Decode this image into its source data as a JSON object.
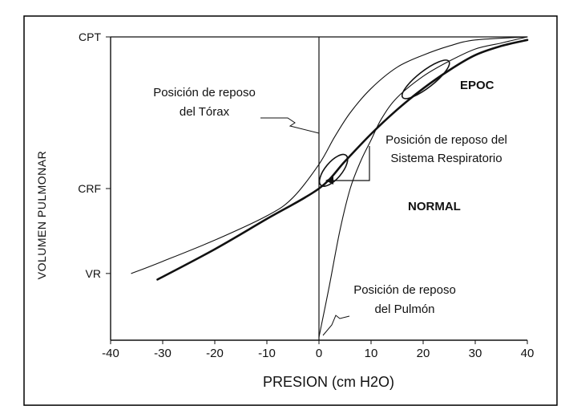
{
  "chart_data": {
    "type": "line",
    "xlabel": "PRESION (cm H2O)",
    "ylabel": "VOLUMEN PULMONAR",
    "xlim": [
      -40,
      40
    ],
    "x_ticks": [
      "-40",
      "-30",
      "-20",
      "-10",
      "0",
      "10",
      "20",
      "30",
      "40"
    ],
    "y_ticks": [
      {
        "label": "VR",
        "value": 0.22
      },
      {
        "label": "CRF",
        "value": 0.5
      },
      {
        "label": "CPT",
        "value": 1.0
      }
    ],
    "ylim": [
      0,
      1
    ],
    "grid": false,
    "series": [
      {
        "key": "torax",
        "x": [
          -36,
          -30,
          -20,
          -10,
          -5,
          0,
          3,
          6,
          10,
          15,
          20,
          25,
          30,
          40
        ],
        "y": [
          0.22,
          0.26,
          0.33,
          0.41,
          0.47,
          0.58,
          0.67,
          0.75,
          0.83,
          0.9,
          0.94,
          0.97,
          0.99,
          1.0
        ]
      },
      {
        "key": "sistema",
        "x": [
          -31,
          -20,
          -10,
          0,
          5,
          10,
          15,
          20,
          25,
          30,
          35,
          40
        ],
        "y": [
          0.2,
          0.3,
          0.4,
          0.5,
          0.59,
          0.68,
          0.76,
          0.83,
          0.89,
          0.94,
          0.97,
          0.99
        ]
      },
      {
        "key": "pulmon",
        "x": [
          0,
          2,
          4,
          6,
          8,
          10,
          12,
          15,
          20,
          25,
          30,
          35,
          40
        ],
        "y": [
          0.01,
          0.18,
          0.36,
          0.5,
          0.59,
          0.66,
          0.73,
          0.8,
          0.87,
          0.92,
          0.96,
          0.98,
          1.0
        ]
      }
    ],
    "ellipses": [
      {
        "name": "CRF normal",
        "cx": 2.8,
        "cy": 0.56,
        "rx": 3,
        "ry": 0.065
      },
      {
        "name": "EPOC",
        "cx": 20.5,
        "cy": 0.86,
        "rx": 4.5,
        "ry": 0.065
      }
    ],
    "annotations": {
      "torax": [
        "Posición de reposo",
        "del Tórax"
      ],
      "sistema": [
        "Posición de reposo del",
        "Sistema Respiratorio"
      ],
      "pulmon": [
        "Posición de reposo",
        "del Pulmón"
      ],
      "epoc": "EPOC",
      "normal": "NORMAL"
    }
  }
}
